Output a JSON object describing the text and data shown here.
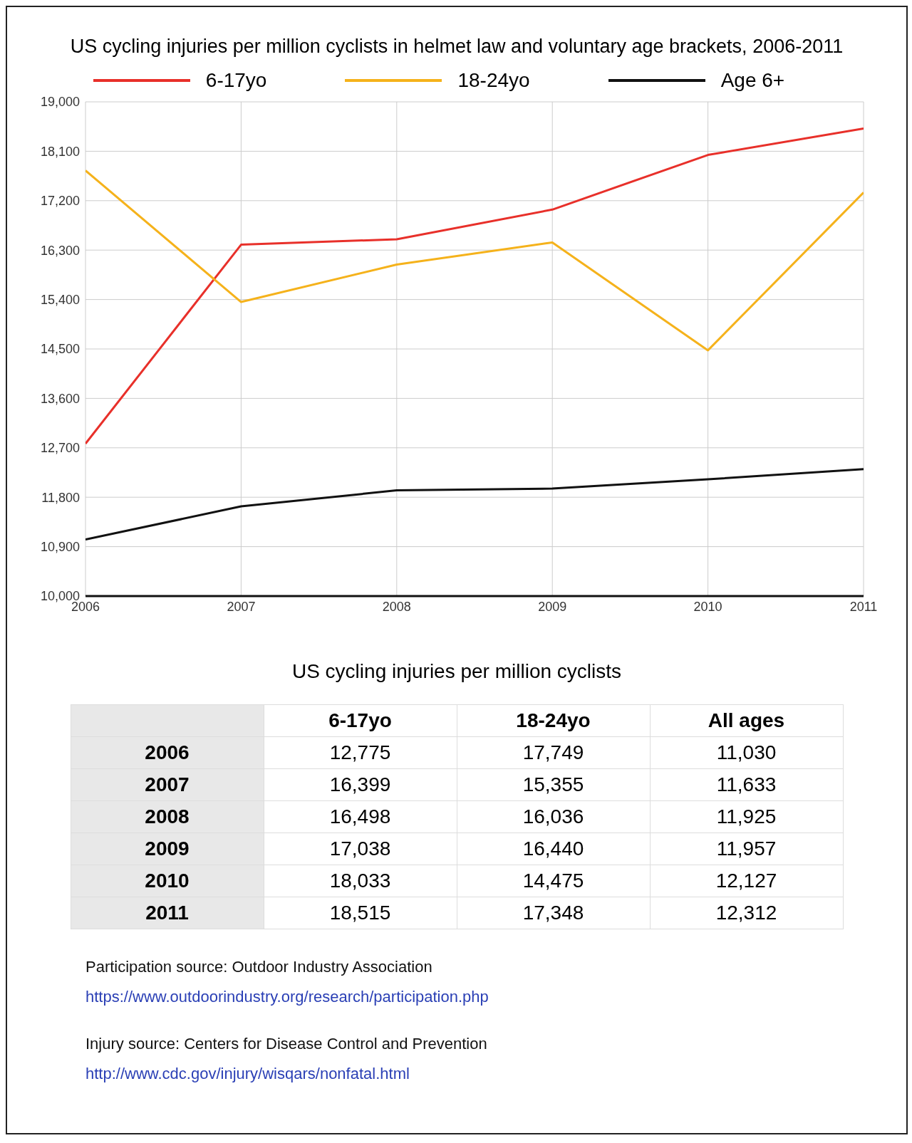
{
  "chart_data": [
    {
      "type": "line",
      "title": "US cycling injuries per million cyclists in helmet law and voluntary age brackets, 2006-2011",
      "x": [
        2006,
        2007,
        2008,
        2009,
        2010,
        2011
      ],
      "xlim": [
        2006,
        2011
      ],
      "xticks": [
        2006,
        2007,
        2008,
        2009,
        2010,
        2011
      ],
      "ylim": [
        10000,
        19000
      ],
      "yticks": [
        {
          "value": 10000,
          "label": "10,000"
        },
        {
          "value": 10900,
          "label": "10,900"
        },
        {
          "value": 11800,
          "label": "11,800"
        },
        {
          "value": 12700,
          "label": "12,700"
        },
        {
          "value": 13600,
          "label": "13,600"
        },
        {
          "value": 14500,
          "label": "14,500"
        },
        {
          "value": 15400,
          "label": "15,400"
        },
        {
          "value": 16300,
          "label": "16,300"
        },
        {
          "value": 17200,
          "label": "17,200"
        },
        {
          "value": 18100,
          "label": "18,100"
        },
        {
          "value": 19000,
          "label": "19,000"
        }
      ],
      "series": [
        {
          "name": "6-17yo",
          "color": "#e8302a",
          "values": [
            12775,
            16399,
            16498,
            17038,
            18033,
            18515
          ]
        },
        {
          "name": "18-24yo",
          "color": "#f5b21b",
          "values": [
            17749,
            15355,
            16036,
            16440,
            14475,
            17348
          ]
        },
        {
          "name": "Age 6+",
          "color": "#111111",
          "values": [
            11030,
            11633,
            11925,
            11957,
            12127,
            12312
          ]
        }
      ],
      "grid": true,
      "legend": "top",
      "marker": "none",
      "line_style": "solid"
    },
    {
      "type": "heatmap",
      "title": "US cycling injuries per million cyclists",
      "categories": [
        "6-17yo",
        "18-24yo",
        "All ages"
      ],
      "y_categories": [
        "2006",
        "2007",
        "2008",
        "2009",
        "2010",
        "2011"
      ],
      "cells": [
        [
          12775,
          17749,
          11030
        ],
        [
          16399,
          15355,
          11633
        ],
        [
          16498,
          16036,
          11925
        ],
        [
          17038,
          16440,
          11957
        ],
        [
          18033,
          14475,
          12127
        ],
        [
          18515,
          17348,
          12312
        ]
      ],
      "cell_labels": [
        [
          "12,775",
          "17,749",
          "11,030"
        ],
        [
          "16,399",
          "15,355",
          "11,633"
        ],
        [
          "16,498",
          "16,036",
          "11,925"
        ],
        [
          "17,038",
          "16,440",
          "11,957"
        ],
        [
          "18,033",
          "14,475",
          "12,127"
        ],
        [
          "18,515",
          "17,348",
          "12,312"
        ]
      ],
      "annotations": [
        "Participation source: Outdoor Industry Association",
        "https://www.outdoorindustry.org/research/participation.php",
        "Injury source: Centers for Disease Control and Prevention",
        "http://www.cdc.gov/injury/wisqars/nonfatal.html"
      ]
    }
  ]
}
